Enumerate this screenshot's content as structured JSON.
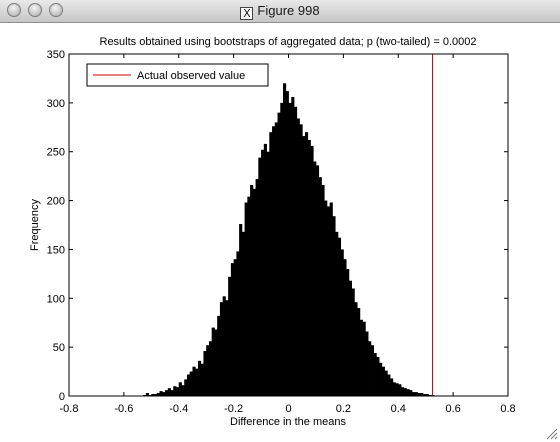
{
  "window": {
    "title": "Figure 998",
    "title_icon": "x11-icon",
    "icon_glyph": "X"
  },
  "chart_data": {
    "type": "bar",
    "title": "Results obtained using bootstraps of aggregated data; p (two-tailed) = 0.0002",
    "xlabel": "Difference in the means",
    "ylabel": "Frequency",
    "xlim": [
      -0.8,
      0.8
    ],
    "ylim": [
      0,
      350
    ],
    "xticks": [
      -0.8,
      -0.6,
      -0.4,
      -0.2,
      0,
      0.2,
      0.4,
      0.6,
      0.8
    ],
    "xtick_labels": [
      "-0.8",
      "-0.6",
      "-0.4",
      "-0.2",
      "0",
      "0.2",
      "0.4",
      "0.6",
      "0.8"
    ],
    "yticks": [
      0,
      50,
      100,
      150,
      200,
      250,
      300,
      350
    ],
    "ytick_labels": [
      "0",
      "50",
      "100",
      "150",
      "200",
      "250",
      "300",
      "350"
    ],
    "grid": false,
    "bar_color": "#000000",
    "histogram": {
      "bin_width": 0.01,
      "bin_centers": [
        -0.525,
        -0.515,
        -0.505,
        -0.495,
        -0.485,
        -0.475,
        -0.465,
        -0.455,
        -0.445,
        -0.435,
        -0.425,
        -0.415,
        -0.405,
        -0.395,
        -0.385,
        -0.375,
        -0.365,
        -0.355,
        -0.345,
        -0.335,
        -0.325,
        -0.315,
        -0.305,
        -0.295,
        -0.285,
        -0.275,
        -0.265,
        -0.255,
        -0.245,
        -0.235,
        -0.225,
        -0.215,
        -0.205,
        -0.195,
        -0.185,
        -0.175,
        -0.165,
        -0.155,
        -0.145,
        -0.135,
        -0.125,
        -0.115,
        -0.105,
        -0.095,
        -0.085,
        -0.075,
        -0.065,
        -0.055,
        -0.045,
        -0.035,
        -0.025,
        -0.015,
        -0.005,
        0.005,
        0.015,
        0.025,
        0.035,
        0.045,
        0.055,
        0.065,
        0.075,
        0.085,
        0.095,
        0.105,
        0.115,
        0.125,
        0.135,
        0.145,
        0.155,
        0.165,
        0.175,
        0.185,
        0.195,
        0.205,
        0.215,
        0.225,
        0.235,
        0.245,
        0.255,
        0.265,
        0.275,
        0.285,
        0.295,
        0.305,
        0.315,
        0.325,
        0.335,
        0.345,
        0.355,
        0.365,
        0.375,
        0.385,
        0.395,
        0.405,
        0.415,
        0.425,
        0.435,
        0.445,
        0.455,
        0.465,
        0.475,
        0.485,
        0.495,
        0.505,
        0.515,
        0.525
      ],
      "counts": [
        1,
        3,
        1,
        2,
        2,
        3,
        5,
        4,
        6,
        8,
        6,
        10,
        9,
        14,
        11,
        17,
        22,
        25,
        30,
        28,
        36,
        33,
        46,
        52,
        56,
        70,
        68,
        82,
        96,
        102,
        98,
        122,
        136,
        140,
        148,
        176,
        168,
        198,
        204,
        216,
        212,
        222,
        244,
        252,
        258,
        250,
        270,
        276,
        280,
        290,
        300,
        320,
        312,
        300,
        306,
        296,
        284,
        278,
        266,
        270,
        262,
        256,
        240,
        236,
        224,
        216,
        200,
        194,
        198,
        184,
        168,
        162,
        150,
        140,
        130,
        118,
        110,
        96,
        90,
        78,
        76,
        66,
        56,
        52,
        44,
        40,
        34,
        30,
        26,
        22,
        18,
        14,
        13,
        12,
        9,
        8,
        7,
        6,
        4,
        4,
        3,
        3,
        2,
        2,
        1,
        1
      ]
    },
    "reference_line": {
      "label": "Actual observed value",
      "x": 0.525,
      "color": "#cc0000"
    },
    "legend_position": "top-left"
  }
}
